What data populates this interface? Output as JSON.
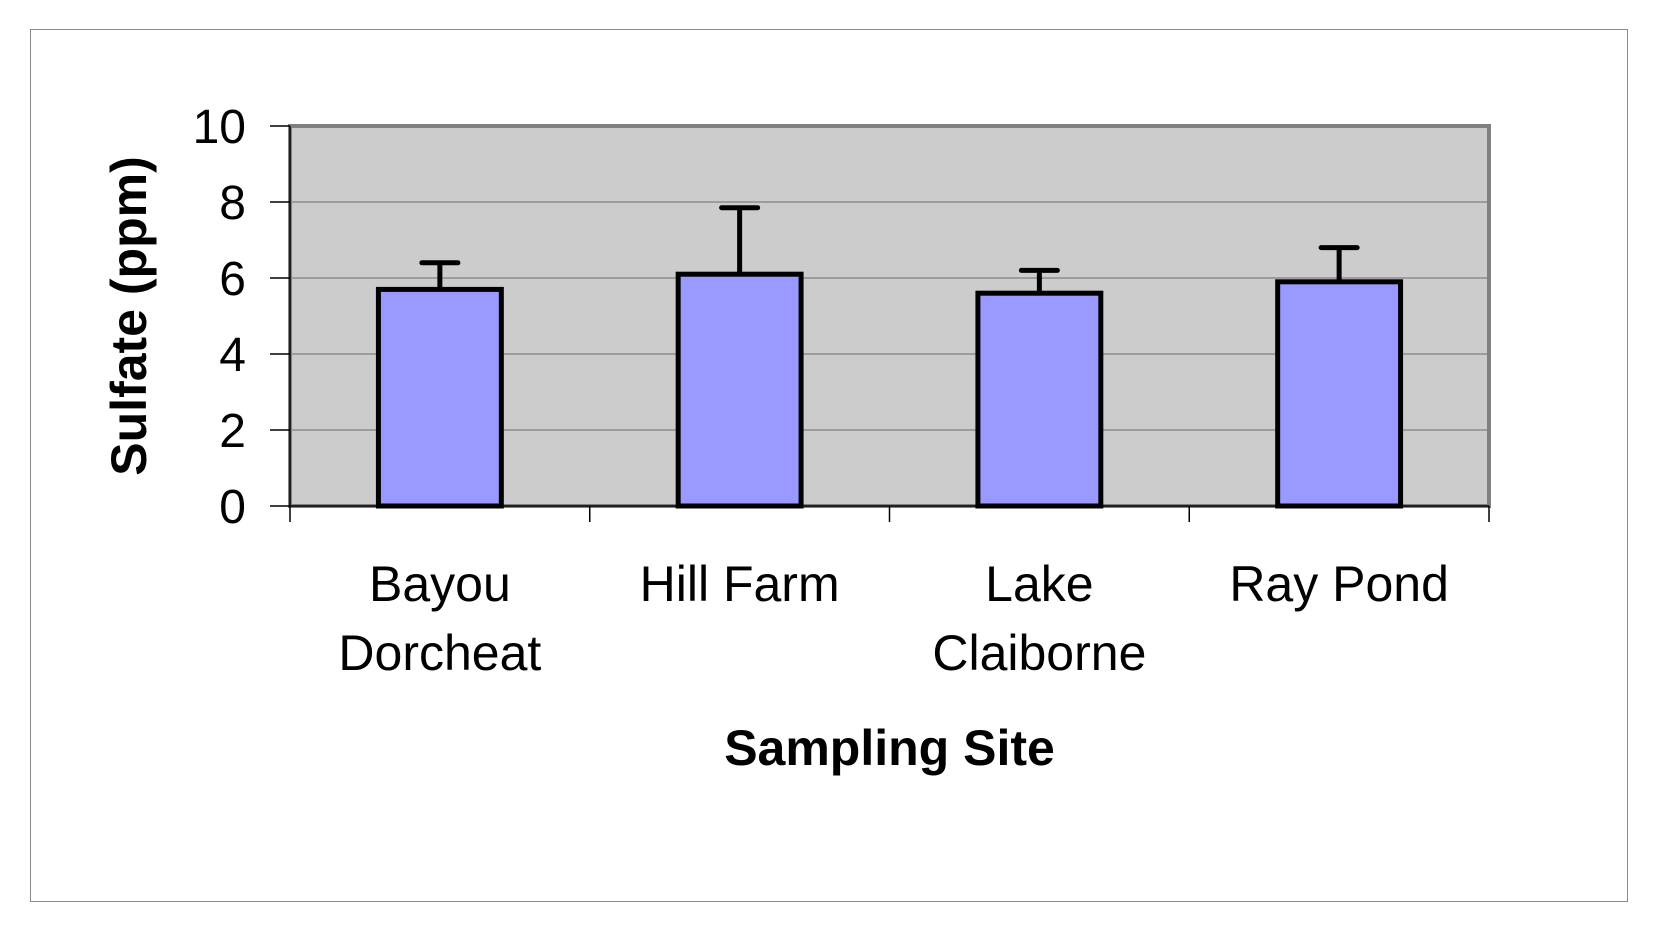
{
  "chart_data": {
    "type": "bar",
    "title": "",
    "xlabel": "Sampling Site",
    "ylabel": "Sulfate (ppm)",
    "categories": [
      [
        "Bayou",
        "Dorcheat"
      ],
      [
        "Hill Farm"
      ],
      [
        "Lake",
        "Claiborne"
      ],
      [
        "Ray Pond"
      ]
    ],
    "values": [
      5.7,
      6.1,
      5.6,
      5.9
    ],
    "error_plus": [
      0.7,
      1.75,
      0.6,
      0.9
    ],
    "ylim": [
      0,
      10
    ],
    "yticks": [
      0,
      2,
      4,
      6,
      8,
      10
    ],
    "grid": true,
    "legend": "none",
    "colors": {
      "bar_fill": "#9999ff",
      "bar_edge": "#000000",
      "plot_bg": "#cccccc",
      "plot_border": "#808080",
      "gridline": "#7f7f7f"
    }
  }
}
